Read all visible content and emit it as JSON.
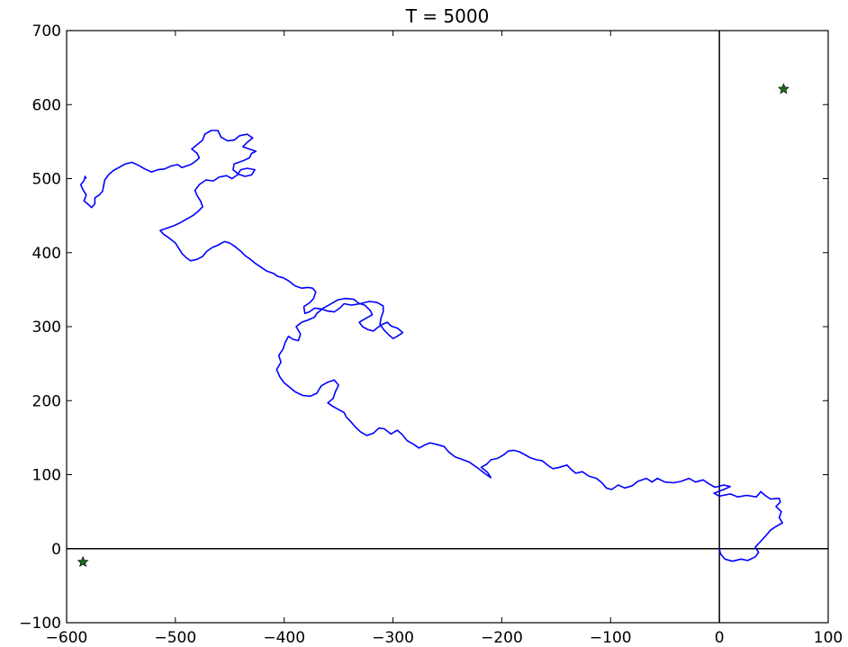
{
  "chart_data": {
    "type": "line",
    "title": "T = 5000",
    "xlabel": "",
    "ylabel": "",
    "xlim": [
      -600,
      100
    ],
    "ylim": [
      -100,
      700
    ],
    "xticks": [
      -600,
      -500,
      -400,
      -300,
      -200,
      -100,
      0,
      100
    ],
    "yticks": [
      -100,
      0,
      100,
      200,
      300,
      400,
      500,
      600,
      700
    ],
    "xtick_labels": [
      "−600",
      "−500",
      "−400",
      "−300",
      "−200",
      "−100",
      "0",
      "100"
    ],
    "ytick_labels": [
      "−100",
      "0",
      "100",
      "200",
      "300",
      "400",
      "500",
      "600",
      "700"
    ],
    "grid": false,
    "reference_lines": {
      "vertical_x": 0,
      "horizontal_y": 0
    },
    "colors": {
      "path": "#0000ff",
      "markers": "#1a6b1a",
      "axes": "#000000"
    },
    "series": [
      {
        "name": "",
        "color": "#0000ff",
        "points": [
          [
            0,
            0
          ],
          [
            1,
            -7
          ],
          [
            5,
            -14
          ],
          [
            12,
            -17
          ],
          [
            20,
            -14
          ],
          [
            26,
            -16
          ],
          [
            33,
            -11
          ],
          [
            36,
            -5
          ],
          [
            33,
            2
          ],
          [
            38,
            10
          ],
          [
            43,
            18
          ],
          [
            47,
            25
          ],
          [
            52,
            30
          ],
          [
            58,
            35
          ],
          [
            55,
            42
          ],
          [
            57,
            50
          ],
          [
            52,
            57
          ],
          [
            56,
            63
          ],
          [
            55,
            68
          ],
          [
            47,
            67
          ],
          [
            42,
            72
          ],
          [
            38,
            77
          ],
          [
            34,
            70
          ],
          [
            25,
            72
          ],
          [
            17,
            70
          ],
          [
            10,
            74
          ],
          [
            0,
            71
          ],
          [
            -5,
            75
          ],
          [
            4,
            80
          ],
          [
            10,
            84
          ],
          [
            4,
            86
          ],
          [
            -4,
            83
          ],
          [
            -10,
            88
          ],
          [
            -15,
            93
          ],
          [
            -22,
            90
          ],
          [
            -28,
            95
          ],
          [
            -35,
            91
          ],
          [
            -42,
            89
          ],
          [
            -50,
            90
          ],
          [
            -57,
            95
          ],
          [
            -62,
            90
          ],
          [
            -67,
            95
          ],
          [
            -75,
            91
          ],
          [
            -80,
            85
          ],
          [
            -87,
            82
          ],
          [
            -93,
            86
          ],
          [
            -99,
            80
          ],
          [
            -104,
            82
          ],
          [
            -108,
            89
          ],
          [
            -113,
            95
          ],
          [
            -120,
            98
          ],
          [
            -126,
            104
          ],
          [
            -132,
            102
          ],
          [
            -137,
            108
          ],
          [
            -140,
            113
          ],
          [
            -147,
            110
          ],
          [
            -153,
            108
          ],
          [
            -158,
            113
          ],
          [
            -163,
            119
          ],
          [
            -168,
            120
          ],
          [
            -174,
            123
          ],
          [
            -180,
            128
          ],
          [
            -184,
            131
          ],
          [
            -189,
            133
          ],
          [
            -194,
            132
          ],
          [
            -198,
            127
          ],
          [
            -204,
            122
          ],
          [
            -210,
            120
          ],
          [
            -214,
            114
          ],
          [
            -219,
            110
          ],
          [
            -213,
            103
          ],
          [
            -210,
            96
          ],
          [
            -216,
            102
          ],
          [
            -223,
            110
          ],
          [
            -230,
            117
          ],
          [
            -237,
            121
          ],
          [
            -243,
            124
          ],
          [
            -249,
            131
          ],
          [
            -253,
            138
          ],
          [
            -260,
            141
          ],
          [
            -266,
            143
          ],
          [
            -271,
            140
          ],
          [
            -276,
            136
          ],
          [
            -281,
            141
          ],
          [
            -287,
            146
          ],
          [
            -292,
            155
          ],
          [
            -296,
            160
          ],
          [
            -302,
            155
          ],
          [
            -308,
            162
          ],
          [
            -313,
            163
          ],
          [
            -318,
            156
          ],
          [
            -324,
            153
          ],
          [
            -330,
            158
          ],
          [
            -335,
            165
          ],
          [
            -339,
            172
          ],
          [
            -343,
            178
          ],
          [
            -345,
            184
          ],
          [
            -350,
            188
          ],
          [
            -355,
            192
          ],
          [
            -360,
            197
          ],
          [
            -355,
            203
          ],
          [
            -353,
            212
          ],
          [
            -350,
            221
          ],
          [
            -354,
            228
          ],
          [
            -360,
            225
          ],
          [
            -366,
            220
          ],
          [
            -370,
            210
          ],
          [
            -376,
            206
          ],
          [
            -383,
            207
          ],
          [
            -390,
            212
          ],
          [
            -395,
            218
          ],
          [
            -400,
            224
          ],
          [
            -404,
            232
          ],
          [
            -407,
            242
          ],
          [
            -403,
            252
          ],
          [
            -405,
            261
          ],
          [
            -401,
            270
          ],
          [
            -399,
            279
          ],
          [
            -396,
            287
          ],
          [
            -392,
            283
          ],
          [
            -387,
            281
          ],
          [
            -385,
            290
          ],
          [
            -389,
            300
          ],
          [
            -384,
            306
          ],
          [
            -378,
            309
          ],
          [
            -372,
            313
          ],
          [
            -370,
            318
          ],
          [
            -364,
            325
          ],
          [
            -358,
            330
          ],
          [
            -351,
            336
          ],
          [
            -344,
            338
          ],
          [
            -336,
            337
          ],
          [
            -332,
            332
          ],
          [
            -326,
            329
          ],
          [
            -321,
            322
          ],
          [
            -319,
            316
          ],
          [
            -324,
            312
          ],
          [
            -331,
            306
          ],
          [
            -328,
            300
          ],
          [
            -323,
            296
          ],
          [
            -318,
            294
          ],
          [
            -314,
            299
          ],
          [
            -310,
            303
          ],
          [
            -305,
            306
          ],
          [
            -302,
            301
          ],
          [
            -296,
            298
          ],
          [
            -291,
            292
          ],
          [
            -296,
            287
          ],
          [
            -300,
            284
          ],
          [
            -304,
            289
          ],
          [
            -308,
            295
          ],
          [
            -312,
            303
          ],
          [
            -311,
            312
          ],
          [
            -309,
            320
          ],
          [
            -309,
            328
          ],
          [
            -315,
            333
          ],
          [
            -322,
            334
          ],
          [
            -330,
            331
          ],
          [
            -338,
            329
          ],
          [
            -345,
            331
          ],
          [
            -349,
            325
          ],
          [
            -354,
            320
          ],
          [
            -360,
            321
          ],
          [
            -366,
            324
          ],
          [
            -372,
            325
          ],
          [
            -377,
            320
          ],
          [
            -381,
            318
          ],
          [
            -382,
            327
          ],
          [
            -376,
            333
          ],
          [
            -373,
            338
          ],
          [
            -371,
            347
          ],
          [
            -374,
            352
          ],
          [
            -378,
            353
          ],
          [
            -384,
            352
          ],
          [
            -390,
            355
          ],
          [
            -396,
            362
          ],
          [
            -401,
            366
          ],
          [
            -406,
            368
          ],
          [
            -410,
            372
          ],
          [
            -416,
            375
          ],
          [
            -421,
            380
          ],
          [
            -427,
            386
          ],
          [
            -431,
            391
          ],
          [
            -436,
            396
          ],
          [
            -440,
            402
          ],
          [
            -445,
            408
          ],
          [
            -450,
            413
          ],
          [
            -455,
            415
          ],
          [
            -461,
            410
          ],
          [
            -466,
            407
          ],
          [
            -471,
            402
          ],
          [
            -475,
            395
          ],
          [
            -480,
            391
          ],
          [
            -486,
            389
          ],
          [
            -490,
            393
          ],
          [
            -494,
            399
          ],
          [
            -497,
            406
          ],
          [
            -500,
            413
          ],
          [
            -506,
            420
          ],
          [
            -511,
            425
          ],
          [
            -514,
            430
          ],
          [
            -508,
            433
          ],
          [
            -502,
            436
          ],
          [
            -496,
            440
          ],
          [
            -490,
            445
          ],
          [
            -484,
            450
          ],
          [
            -479,
            456
          ],
          [
            -475,
            462
          ],
          [
            -477,
            470
          ],
          [
            -480,
            477
          ],
          [
            -482,
            484
          ],
          [
            -478,
            492
          ],
          [
            -472,
            498
          ],
          [
            -465,
            497
          ],
          [
            -460,
            502
          ],
          [
            -453,
            504
          ],
          [
            -448,
            500
          ],
          [
            -443,
            505
          ],
          [
            -440,
            512
          ],
          [
            -434,
            514
          ],
          [
            -427,
            512
          ],
          [
            -430,
            505
          ],
          [
            -436,
            503
          ],
          [
            -442,
            506
          ],
          [
            -447,
            512
          ],
          [
            -446,
            520
          ],
          [
            -438,
            524
          ],
          [
            -432,
            528
          ],
          [
            -430,
            534
          ],
          [
            -426,
            537
          ],
          [
            -432,
            540
          ],
          [
            -438,
            543
          ],
          [
            -434,
            549
          ],
          [
            -429,
            555
          ],
          [
            -434,
            560
          ],
          [
            -441,
            558
          ],
          [
            -446,
            552
          ],
          [
            -452,
            551
          ],
          [
            -458,
            556
          ],
          [
            -461,
            565
          ],
          [
            -467,
            565
          ],
          [
            -473,
            560
          ],
          [
            -475,
            552
          ],
          [
            -480,
            546
          ],
          [
            -485,
            540
          ],
          [
            -480,
            534
          ],
          [
            -478,
            528
          ],
          [
            -482,
            523
          ],
          [
            -486,
            519
          ],
          [
            -490,
            517
          ],
          [
            -494,
            515
          ],
          [
            -498,
            519
          ],
          [
            -504,
            517
          ],
          [
            -510,
            513
          ],
          [
            -516,
            512
          ],
          [
            -522,
            509
          ],
          [
            -528,
            513
          ],
          [
            -534,
            518
          ],
          [
            -540,
            522
          ],
          [
            -546,
            520
          ],
          [
            -552,
            515
          ],
          [
            -557,
            511
          ],
          [
            -561,
            506
          ],
          [
            -565,
            498
          ],
          [
            -566,
            490
          ],
          [
            -567,
            483
          ],
          [
            -570,
            478
          ],
          [
            -574,
            474
          ],
          [
            -574,
            466
          ],
          [
            -577,
            461
          ],
          [
            -580,
            465
          ],
          [
            -584,
            470
          ],
          [
            -582,
            478
          ],
          [
            -585,
            485
          ],
          [
            -587,
            492
          ],
          [
            -584,
            497
          ],
          [
            -583,
            503
          ],
          [
            -582,
            500
          ]
        ]
      }
    ],
    "markers": [
      {
        "symbol": "star",
        "x": -585,
        "y": -18,
        "color": "#1a6b1a"
      },
      {
        "symbol": "star",
        "x": 59,
        "y": 621,
        "color": "#1a6b1a"
      }
    ]
  }
}
